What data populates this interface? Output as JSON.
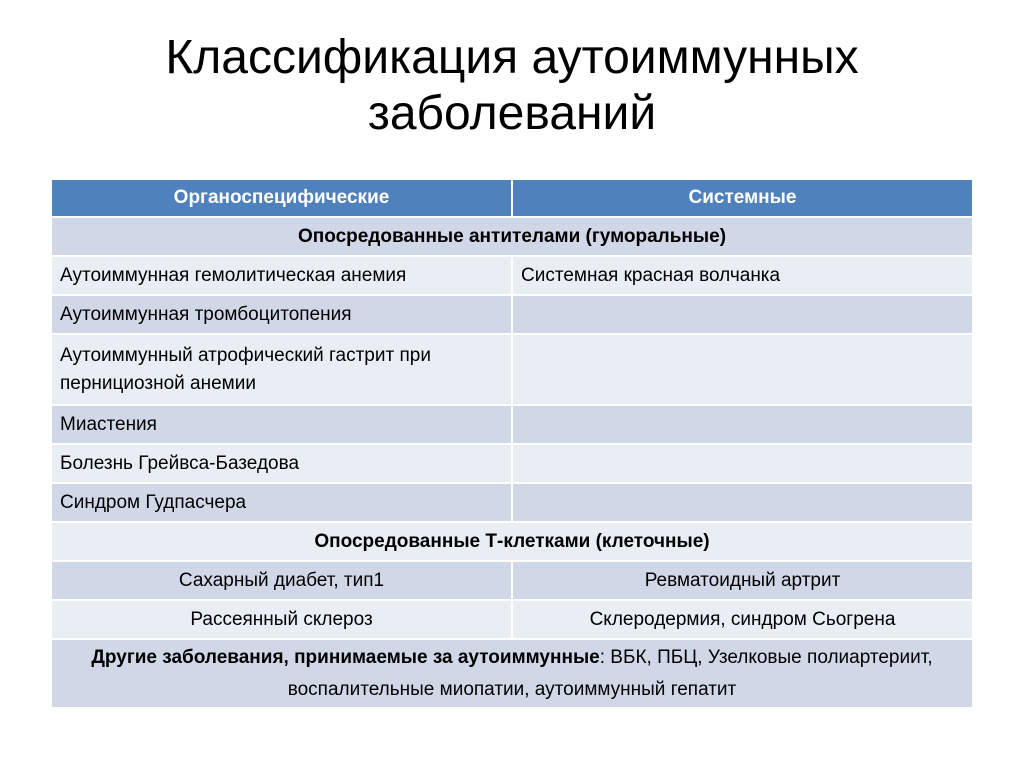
{
  "title": {
    "line1": "Классификация аутоиммунных",
    "line2": "заболеваний"
  },
  "table": {
    "headers": [
      "Органоспецифические",
      "Системные"
    ],
    "section_humoral": "Опосредованные антителами (гуморальные)",
    "humoral_rows": [
      [
        "Аутоиммунная гемолитическая анемия",
        "Системная красная волчанка"
      ],
      [
        "Аутоиммунная тромбоцитопения",
        ""
      ],
      [
        "Аутоиммунный атрофический гастрит при пернициозной анемии",
        ""
      ],
      [
        "Миастения",
        ""
      ],
      [
        "Болезнь Грейвса-Базедова",
        ""
      ],
      [
        "Синдром Гудпасчера",
        ""
      ]
    ],
    "section_cellular": "Опосредованные Т-клетками (клеточные)",
    "cellular_rows": [
      [
        "Сахарный диабет, тип1",
        "Ревматоидный артрит"
      ],
      [
        "Рассеянный склероз",
        "Склеродермия, синдром Сьогрена"
      ]
    ],
    "other_label": "Другие заболевания, принимаемые за аутоиммунные",
    "other_text": ": ВБК, ПБЦ, Узелковые полиартериит, воспалительные миопатии, аутоиммунный гепатит"
  },
  "colors": {
    "header": "#4F81BD",
    "row_dark": "#D0D8E8",
    "row_light": "#E9EDF4"
  }
}
